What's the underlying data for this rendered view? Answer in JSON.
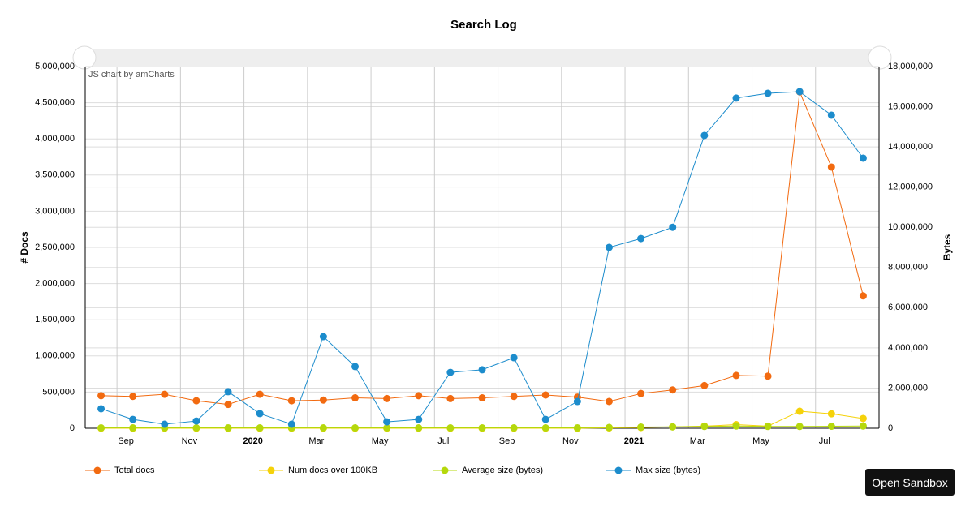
{
  "chart_data": {
    "type": "line",
    "title": "Search Log",
    "ylabel": "# Docs",
    "y2label": "Bytes",
    "credit": "JS chart by amCharts",
    "button": "Open Sandbox",
    "x": [
      "2019-08",
      "2019-09",
      "2019-10",
      "2019-11",
      "2019-12",
      "2020-01",
      "2020-02",
      "2020-03",
      "2020-04",
      "2020-05",
      "2020-06",
      "2020-07",
      "2020-08",
      "2020-09",
      "2020-10",
      "2020-11",
      "2020-12",
      "2021-01",
      "2021-02",
      "2021-03",
      "2021-04",
      "2021-05",
      "2021-06",
      "2021-07",
      "2021-08"
    ],
    "xlim": [
      "2019-08",
      "2021-09"
    ],
    "xticks": [
      {
        "value": "2019-09",
        "label": "Sep"
      },
      {
        "value": "2019-11",
        "label": "Nov"
      },
      {
        "value": "2020-01",
        "label": "2020"
      },
      {
        "value": "2020-03",
        "label": "Mar"
      },
      {
        "value": "2020-05",
        "label": "May"
      },
      {
        "value": "2020-07",
        "label": "Jul"
      },
      {
        "value": "2020-09",
        "label": "Sep"
      },
      {
        "value": "2020-11",
        "label": "Nov"
      },
      {
        "value": "2021-01",
        "label": "2021"
      },
      {
        "value": "2021-03",
        "label": "Mar"
      },
      {
        "value": "2021-05",
        "label": "May"
      },
      {
        "value": "2021-07",
        "label": "Jul"
      }
    ],
    "ylim": [
      0,
      5000000
    ],
    "yticks": [
      0,
      {
        "value": 500000,
        "label": "500,000"
      },
      {
        "value": 1000000,
        "label": "1,000,000"
      },
      {
        "value": 1500000,
        "label": "1,500,000"
      },
      {
        "value": 2000000,
        "label": "2,000,000"
      },
      {
        "value": 2500000,
        "label": "2,500,000"
      },
      {
        "value": 3000000,
        "label": "3,000,000"
      },
      {
        "value": 3500000,
        "label": "3,500,000"
      },
      {
        "value": 4000000,
        "label": "4,000,000"
      },
      {
        "value": 4500000,
        "label": "4,500,000"
      },
      {
        "value": 5000000,
        "label": "5,000,000"
      }
    ],
    "y2lim": [
      0,
      18000000
    ],
    "y2ticks": [
      0,
      {
        "value": 2000000,
        "label": "2,000,000"
      },
      {
        "value": 4000000,
        "label": "4,000,000"
      },
      {
        "value": 6000000,
        "label": "6,000,000"
      },
      {
        "value": 8000000,
        "label": "8,000,000"
      },
      {
        "value": 10000000,
        "label": "10,000,000"
      },
      {
        "value": 12000000,
        "label": "12,000,000"
      },
      {
        "value": 14000000,
        "label": "14,000,000"
      },
      {
        "value": 16000000,
        "label": "16,000,000"
      },
      {
        "value": 18000000,
        "label": "18,000,000"
      }
    ],
    "grid": true,
    "series": [
      {
        "name": "Total docs",
        "color": "#f26a10",
        "values": [
          450000,
          440000,
          470000,
          380000,
          330000,
          470000,
          380000,
          390000,
          420000,
          410000,
          450000,
          410000,
          420000,
          440000,
          460000,
          430000,
          370000,
          480000,
          530000,
          590000,
          730000,
          720000,
          4650000,
          3610000,
          1830000
        ]
      },
      {
        "name": "Num docs over 100KB",
        "color": "#f5d20a",
        "values": [
          0,
          0,
          0,
          0,
          0,
          0,
          0,
          0,
          0,
          0,
          0,
          0,
          0,
          0,
          0,
          0,
          5000,
          10000,
          20000,
          30000,
          50000,
          30000,
          235000,
          200000,
          135000
        ]
      },
      {
        "name": "Average size (bytes)",
        "color": "#b5d80c",
        "axis": "y2",
        "values": [
          20000,
          20000,
          20000,
          20000,
          20000,
          20000,
          20000,
          20000,
          20000,
          20000,
          20000,
          20000,
          20000,
          20000,
          20000,
          20000,
          40000,
          60000,
          70000,
          90000,
          110000,
          90000,
          90000,
          100000,
          110000
        ]
      },
      {
        "name": "Max size (bytes)",
        "color": "#1c8ccc",
        "axis": "y2",
        "values": [
          970000,
          440000,
          200000,
          360000,
          1820000,
          730000,
          200000,
          4560000,
          3070000,
          320000,
          440000,
          2780000,
          2910000,
          3510000,
          440000,
          1330000,
          9000000,
          9440000,
          10000000,
          14570000,
          16430000,
          16670000,
          16750000,
          15580000,
          13440000
        ]
      }
    ]
  }
}
